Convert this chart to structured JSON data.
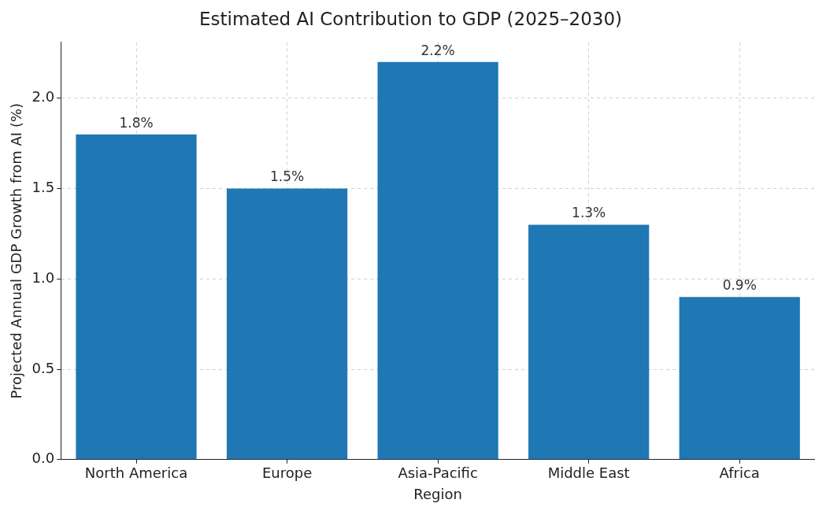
{
  "chart_data": {
    "type": "bar",
    "title": "Estimated AI Contribution to GDP (2025–2030)",
    "xlabel": "Region",
    "ylabel": "Projected Annual GDP Growth from AI (%)",
    "categories": [
      "North America",
      "Europe",
      "Asia-Pacific",
      "Middle East",
      "Africa"
    ],
    "values": [
      1.8,
      1.5,
      2.2,
      1.3,
      0.9
    ],
    "color": "#1f77b4",
    "value_labels": [
      "1.8%",
      "1.5%",
      "2.2%",
      "1.3%",
      "0.9%"
    ],
    "ylim": [
      0,
      2.31
    ],
    "yticks": [
      {
        "value": 0,
        "label": "0.0"
      },
      {
        "value": 0.5,
        "label": "0.5"
      },
      {
        "value": 1,
        "label": "1.0"
      },
      {
        "value": 1.5,
        "label": "1.5"
      },
      {
        "value": 2,
        "label": "2.0"
      }
    ],
    "grid": true
  }
}
